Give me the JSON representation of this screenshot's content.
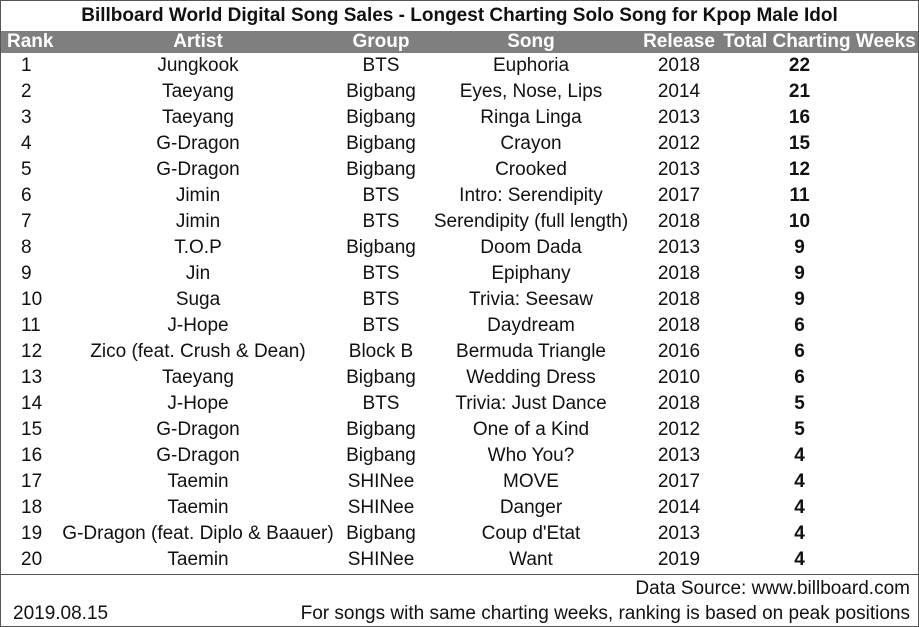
{
  "title": "Billboard World Digital Song Sales - Longest Charting Solo Song for Kpop Male Idol",
  "headers": {
    "rank": "Rank",
    "artist": "Artist",
    "group": "Group",
    "song": "Song",
    "release": "Release",
    "weeks": "Total Charting Weeks"
  },
  "rows": [
    {
      "rank": "1",
      "artist": "Jungkook",
      "group": "BTS",
      "song": "Euphoria",
      "release": "2018",
      "weeks": "22"
    },
    {
      "rank": "2",
      "artist": "Taeyang",
      "group": "Bigbang",
      "song": "Eyes, Nose, Lips",
      "release": "2014",
      "weeks": "21"
    },
    {
      "rank": "3",
      "artist": "Taeyang",
      "group": "Bigbang",
      "song": "Ringa Linga",
      "release": "2013",
      "weeks": "16"
    },
    {
      "rank": "4",
      "artist": "G-Dragon",
      "group": "Bigbang",
      "song": "Crayon",
      "release": "2012",
      "weeks": "15"
    },
    {
      "rank": "5",
      "artist": "G-Dragon",
      "group": "Bigbang",
      "song": "Crooked",
      "release": "2013",
      "weeks": "12"
    },
    {
      "rank": "6",
      "artist": "Jimin",
      "group": "BTS",
      "song": "Intro: Serendipity",
      "release": "2017",
      "weeks": "11"
    },
    {
      "rank": "7",
      "artist": "Jimin",
      "group": "BTS",
      "song": "Serendipity (full length)",
      "release": "2018",
      "weeks": "10"
    },
    {
      "rank": "8",
      "artist": "T.O.P",
      "group": "Bigbang",
      "song": "Doom Dada",
      "release": "2013",
      "weeks": "9"
    },
    {
      "rank": "9",
      "artist": "Jin",
      "group": "BTS",
      "song": "Epiphany",
      "release": "2018",
      "weeks": "9"
    },
    {
      "rank": "10",
      "artist": "Suga",
      "group": "BTS",
      "song": "Trivia: Seesaw",
      "release": "2018",
      "weeks": "9"
    },
    {
      "rank": "11",
      "artist": "J-Hope",
      "group": "BTS",
      "song": "Daydream",
      "release": "2018",
      "weeks": "6"
    },
    {
      "rank": "12",
      "artist": "Zico (feat. Crush & Dean)",
      "group": "Block B",
      "song": "Bermuda Triangle",
      "release": "2016",
      "weeks": "6"
    },
    {
      "rank": "13",
      "artist": "Taeyang",
      "group": "Bigbang",
      "song": "Wedding Dress",
      "release": "2010",
      "weeks": "6"
    },
    {
      "rank": "14",
      "artist": "J-Hope",
      "group": "BTS",
      "song": "Trivia: Just Dance",
      "release": "2018",
      "weeks": "5"
    },
    {
      "rank": "15",
      "artist": "G-Dragon",
      "group": "Bigbang",
      "song": "One of a Kind",
      "release": "2012",
      "weeks": "5"
    },
    {
      "rank": "16",
      "artist": "G-Dragon",
      "group": "Bigbang",
      "song": "Who You?",
      "release": "2013",
      "weeks": "4"
    },
    {
      "rank": "17",
      "artist": "Taemin",
      "group": "SHINee",
      "song": "MOVE",
      "release": "2017",
      "weeks": "4"
    },
    {
      "rank": "18",
      "artist": "Taemin",
      "group": "SHINee",
      "song": "Danger",
      "release": "2014",
      "weeks": "4"
    },
    {
      "rank": "19",
      "artist": "G-Dragon (feat. Diplo & Baauer)",
      "group": "Bigbang",
      "song": "Coup d'Etat",
      "release": "2013",
      "weeks": "4"
    },
    {
      "rank": "20",
      "artist": "Taemin",
      "group": "SHINee",
      "song": "Want",
      "release": "2019",
      "weeks": "4"
    }
  ],
  "footer": {
    "source": "Data Source: www.billboard.com",
    "date": "2019.08.15",
    "note": "For songs with same charting weeks, ranking is based on peak positions"
  },
  "colors": {
    "header_bg": "#7f7f7f",
    "header_text": "#ffffff"
  }
}
